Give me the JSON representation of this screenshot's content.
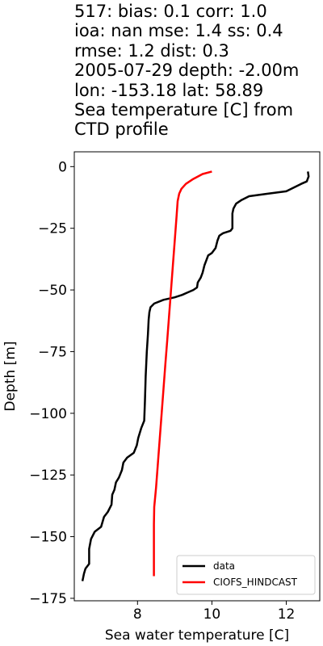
{
  "title_lines": [
    "517: bias: 0.1  corr: 1.0",
    "ioa: nan  mse: 1.4  ss: 0.4",
    "rmse: 1.2  dist: 0.3",
    "2005-07-29 depth: -2.00m",
    "lon: -153.18 lat: 58.89",
    "Sea temperature [C] from",
    "CTD profile"
  ],
  "chart_data": {
    "type": "line",
    "xlabel": "Sea water temperature [C]",
    "ylabel": "Depth [m]",
    "xlim": [
      6.3,
      12.9
    ],
    "ylim": [
      -176,
      6
    ],
    "xticks": [
      8,
      10,
      12
    ],
    "xtick_labels": [
      "8",
      "10",
      "12"
    ],
    "yticks": [
      0,
      -25,
      -50,
      -75,
      -100,
      -125,
      -150,
      -175
    ],
    "ytick_labels": [
      "0",
      "−25",
      "−50",
      "−75",
      "−100",
      "−125",
      "−150",
      "−175"
    ],
    "grid": false,
    "legend_position": "bottom-right",
    "series": [
      {
        "name": "data",
        "color": "#000000",
        "points": [
          [
            12.58,
            -2
          ],
          [
            12.6,
            -4
          ],
          [
            12.55,
            -6
          ],
          [
            12.4,
            -7
          ],
          [
            12.0,
            -10
          ],
          [
            11.5,
            -11
          ],
          [
            11.0,
            -12
          ],
          [
            10.8,
            -13.5
          ],
          [
            10.65,
            -15
          ],
          [
            10.58,
            -17
          ],
          [
            10.55,
            -19
          ],
          [
            10.55,
            -25
          ],
          [
            10.5,
            -26
          ],
          [
            10.3,
            -27
          ],
          [
            10.2,
            -28
          ],
          [
            10.15,
            -30
          ],
          [
            10.1,
            -33
          ],
          [
            10.0,
            -35
          ],
          [
            9.9,
            -36
          ],
          [
            9.85,
            -38
          ],
          [
            9.8,
            -40
          ],
          [
            9.75,
            -43
          ],
          [
            9.7,
            -45
          ],
          [
            9.62,
            -47
          ],
          [
            9.6,
            -49
          ],
          [
            9.5,
            -50
          ],
          [
            9.35,
            -51
          ],
          [
            9.2,
            -52
          ],
          [
            9.0,
            -53
          ],
          [
            8.7,
            -54
          ],
          [
            8.45,
            -55.5
          ],
          [
            8.35,
            -57
          ],
          [
            8.32,
            -59
          ],
          [
            8.3,
            -62
          ],
          [
            8.28,
            -68
          ],
          [
            8.25,
            -75
          ],
          [
            8.22,
            -85
          ],
          [
            8.2,
            -95
          ],
          [
            8.18,
            -103
          ],
          [
            8.1,
            -106
          ],
          [
            8.02,
            -110
          ],
          [
            7.98,
            -113
          ],
          [
            7.9,
            -116
          ],
          [
            7.72,
            -118
          ],
          [
            7.62,
            -120
          ],
          [
            7.58,
            -123
          ],
          [
            7.5,
            -126
          ],
          [
            7.42,
            -128
          ],
          [
            7.38,
            -131
          ],
          [
            7.32,
            -133
          ],
          [
            7.3,
            -137
          ],
          [
            7.2,
            -140
          ],
          [
            7.1,
            -142
          ],
          [
            7.02,
            -146
          ],
          [
            6.85,
            -148
          ],
          [
            6.75,
            -151
          ],
          [
            6.7,
            -155
          ],
          [
            6.7,
            -161
          ],
          [
            6.6,
            -163
          ],
          [
            6.56,
            -165
          ],
          [
            6.52,
            -168
          ]
        ]
      },
      {
        "name": "CIOFS_HINDCAST",
        "color": "#ff0000",
        "points": [
          [
            10.0,
            -2
          ],
          [
            9.75,
            -3
          ],
          [
            9.5,
            -5
          ],
          [
            9.3,
            -7
          ],
          [
            9.18,
            -9
          ],
          [
            9.12,
            -11
          ],
          [
            9.08,
            -14
          ],
          [
            9.05,
            -20
          ],
          [
            9.0,
            -30
          ],
          [
            8.95,
            -40
          ],
          [
            8.9,
            -50
          ],
          [
            8.85,
            -60
          ],
          [
            8.8,
            -70
          ],
          [
            8.75,
            -80
          ],
          [
            8.7,
            -90
          ],
          [
            8.65,
            -100
          ],
          [
            8.6,
            -110
          ],
          [
            8.55,
            -120
          ],
          [
            8.5,
            -130
          ],
          [
            8.45,
            -138
          ],
          [
            8.44,
            -145
          ],
          [
            8.44,
            -155
          ],
          [
            8.44,
            -166
          ]
        ]
      }
    ]
  }
}
